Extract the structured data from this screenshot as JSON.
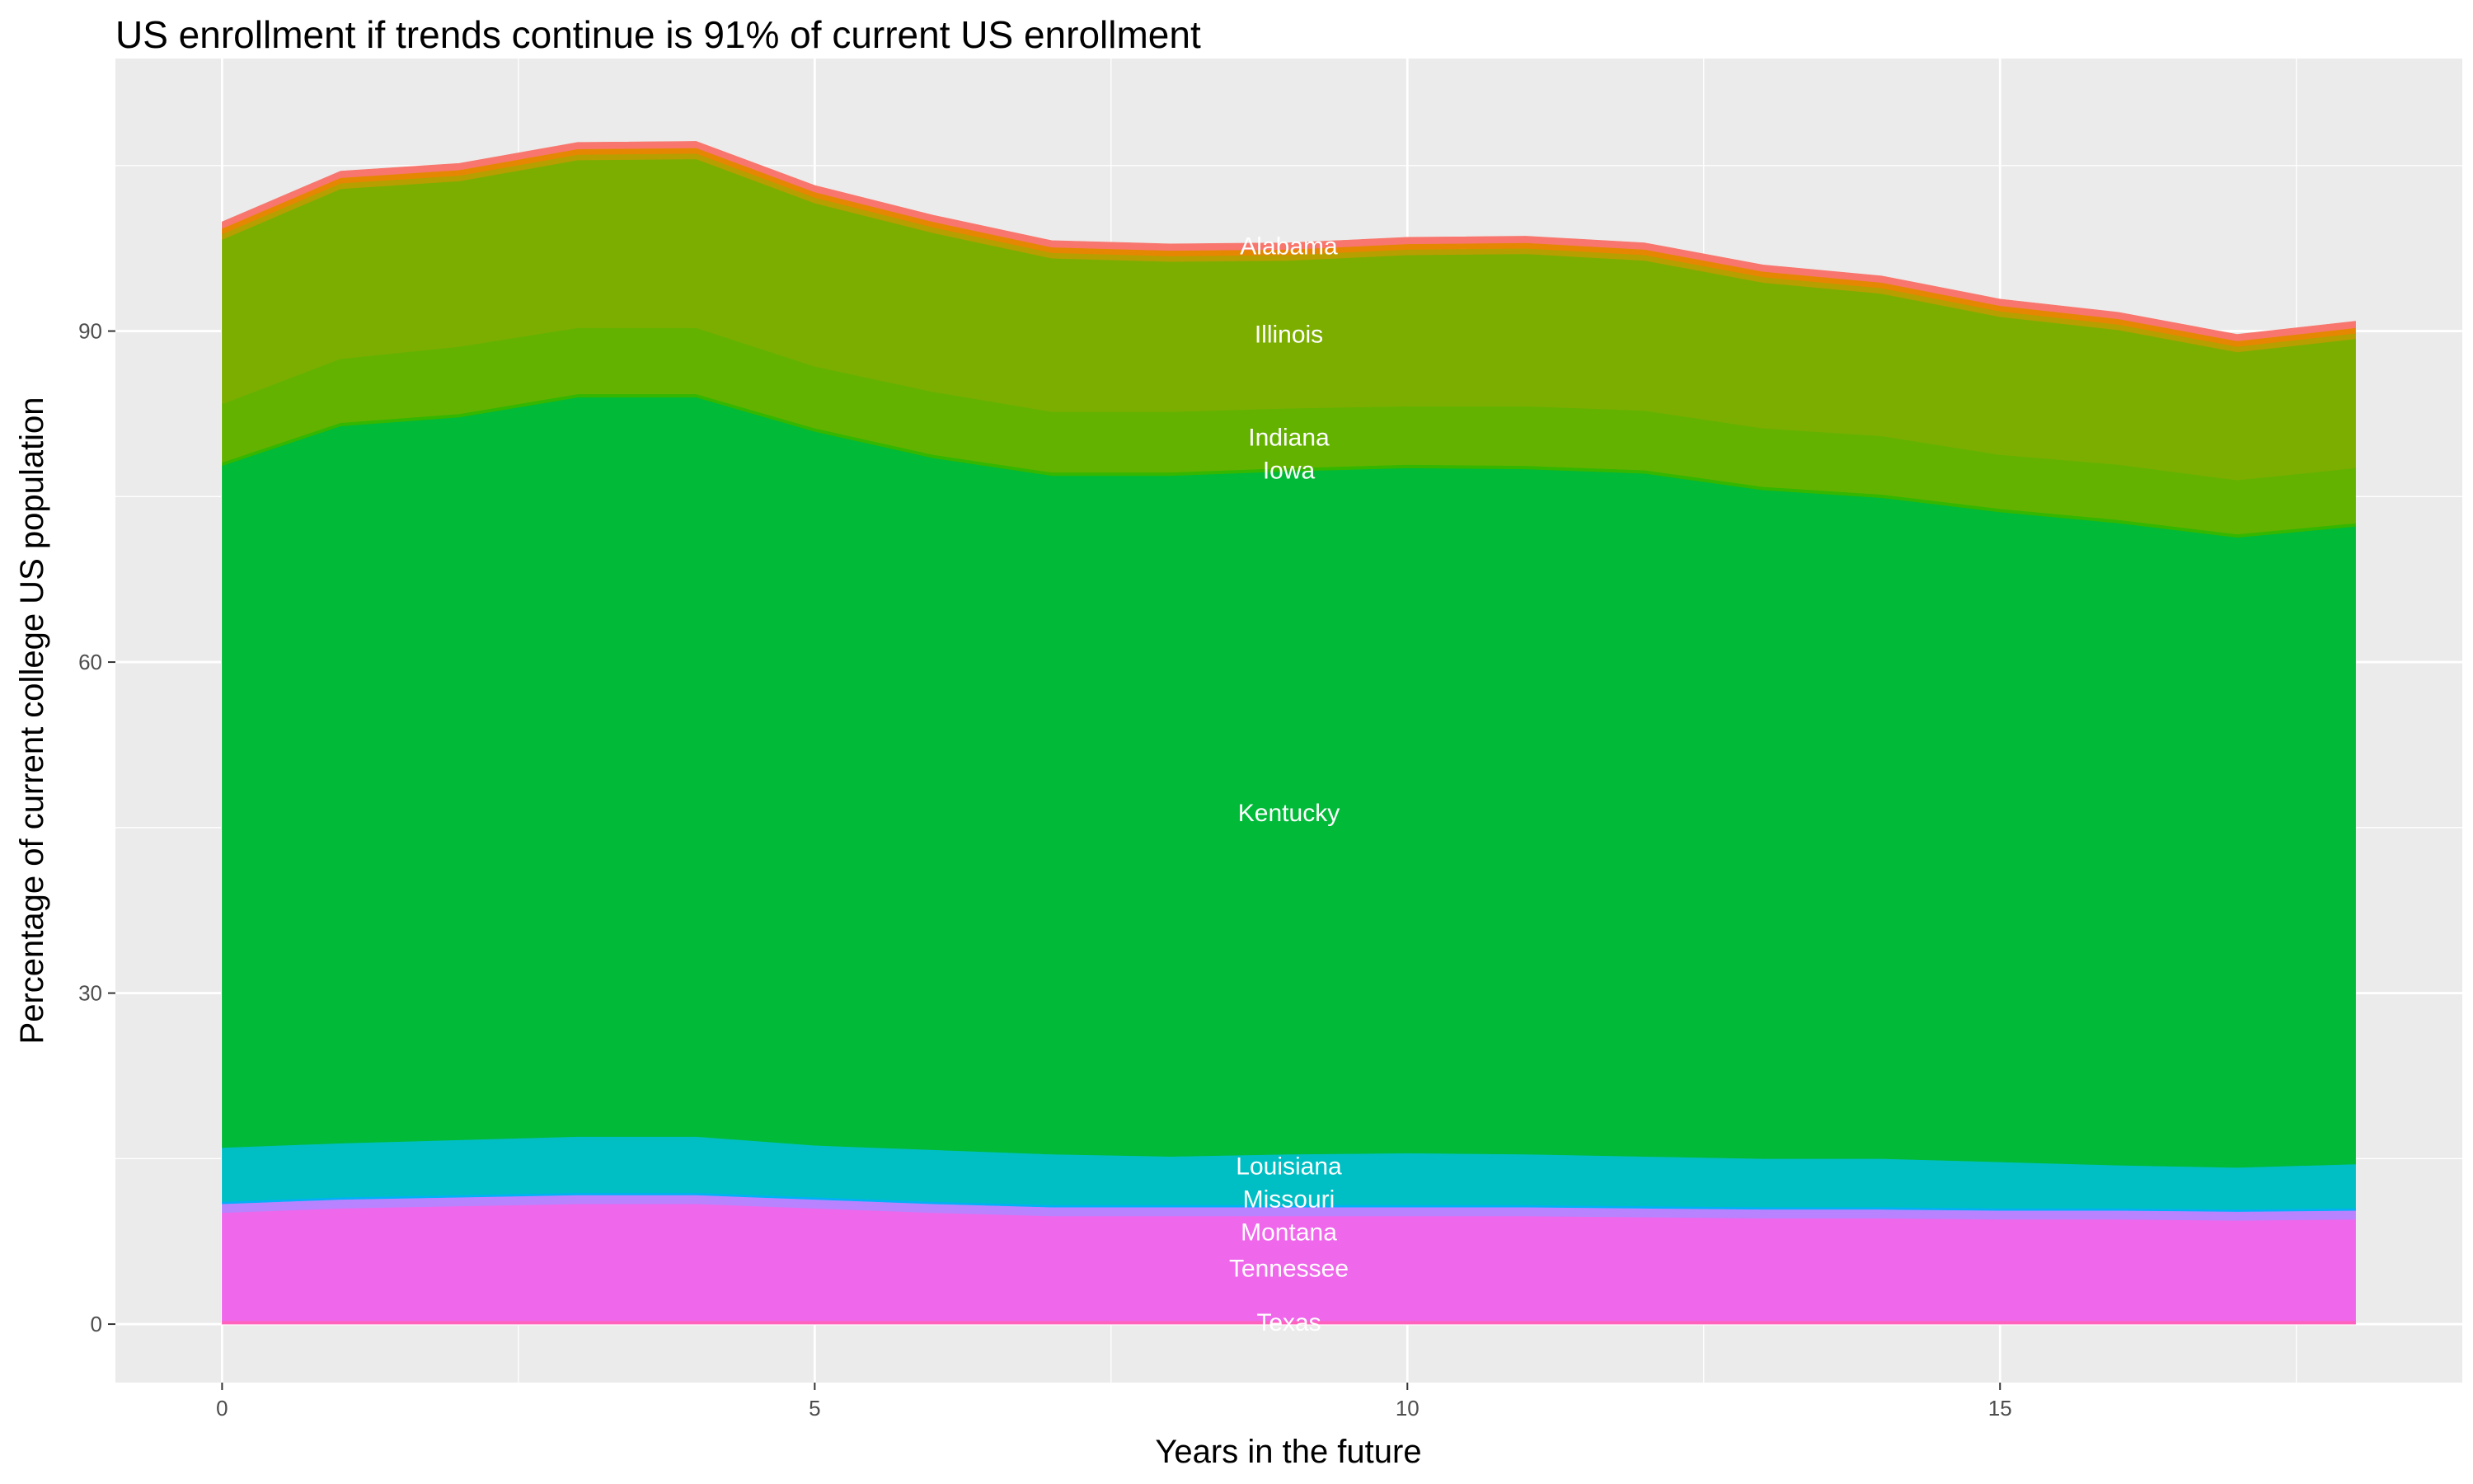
{
  "chart_data": {
    "type": "area",
    "stacked": true,
    "title": "US enrollment if trends continue is 91% of current US enrollment",
    "xlabel": "Years in the future",
    "ylabel": "Percentage of current college US population",
    "xlim": [
      -0.9,
      18.9
    ],
    "ylim": [
      -5.3,
      114.7
    ],
    "xticks": [
      0,
      5,
      10,
      15
    ],
    "yticks": [
      0,
      30,
      60,
      90
    ],
    "grid": true,
    "legend": "none",
    "label_x": 9,
    "x": [
      0,
      1,
      2,
      3,
      4,
      5,
      6,
      7,
      8,
      9,
      10,
      11,
      12,
      13,
      14,
      15,
      16,
      17,
      18
    ],
    "series": [
      {
        "name": "Texas",
        "color": "#FF62BC",
        "values": [
          0.3,
          0.3,
          0.3,
          0.3,
          0.3,
          0.3,
          0.3,
          0.3,
          0.3,
          0.3,
          0.3,
          0.3,
          0.3,
          0.3,
          0.3,
          0.3,
          0.3,
          0.3,
          0.3
        ]
      },
      {
        "name": "Tennessee",
        "color": "#EF67EB",
        "values": [
          9.8,
          10.2,
          10.4,
          10.6,
          10.6,
          10.2,
          9.8,
          9.5,
          9.5,
          9.5,
          9.5,
          9.5,
          9.4,
          9.3,
          9.3,
          9.2,
          9.2,
          9.1,
          9.2
        ]
      },
      {
        "name": "Montana",
        "color": "#B983FF",
        "values": [
          0.8,
          0.8,
          0.8,
          0.8,
          0.8,
          0.8,
          0.8,
          0.8,
          0.8,
          0.8,
          0.8,
          0.8,
          0.8,
          0.8,
          0.8,
          0.8,
          0.8,
          0.8,
          0.8
        ]
      },
      {
        "name": "Missouri",
        "color": "#00B0F6",
        "values": [
          0.2,
          0.2,
          0.2,
          0.2,
          0.2,
          0.2,
          0.2,
          0.2,
          0.2,
          0.2,
          0.2,
          0.2,
          0.2,
          0.2,
          0.2,
          0.2,
          0.2,
          0.2,
          0.2
        ]
      },
      {
        "name": "Louisiana",
        "color": "#00BFC4",
        "values": [
          4.9,
          4.9,
          5.0,
          5.1,
          5.1,
          4.7,
          4.7,
          4.6,
          4.4,
          4.6,
          4.7,
          4.6,
          4.5,
          4.4,
          4.4,
          4.2,
          3.9,
          3.8,
          4.0
        ]
      },
      {
        "name": "Kentucky",
        "color": "#00BA38",
        "values": [
          61.8,
          65.0,
          65.5,
          67.0,
          67.0,
          64.7,
          62.7,
          61.5,
          61.7,
          61.9,
          62.1,
          62.1,
          61.9,
          60.6,
          59.9,
          58.9,
          58.2,
          57.1,
          57.8
        ]
      },
      {
        "name": "Iowa",
        "color": "#35B700",
        "values": [
          0.3,
          0.3,
          0.3,
          0.3,
          0.3,
          0.3,
          0.3,
          0.3,
          0.3,
          0.3,
          0.3,
          0.3,
          0.3,
          0.3,
          0.3,
          0.3,
          0.3,
          0.3,
          0.3
        ]
      },
      {
        "name": "Indiana",
        "color": "#64B200",
        "values": [
          5.3,
          5.8,
          6.1,
          6.0,
          6.0,
          5.6,
          5.7,
          5.5,
          5.5,
          5.4,
          5.3,
          5.4,
          5.4,
          5.3,
          5.3,
          4.9,
          5.0,
          4.9,
          5.0
        ]
      },
      {
        "name": "Illinois",
        "color": "#7CAE00",
        "values": [
          14.9,
          15.4,
          15.0,
          15.2,
          15.3,
          14.8,
          14.4,
          13.9,
          13.6,
          13.4,
          13.7,
          13.8,
          13.6,
          13.2,
          12.9,
          12.5,
          12.2,
          11.6,
          11.7
        ]
      },
      {
        "name": "",
        "color": "#B79F00",
        "values": [
          0.5,
          0.5,
          0.5,
          0.5,
          0.5,
          0.5,
          0.5,
          0.5,
          0.5,
          0.5,
          0.5,
          0.5,
          0.5,
          0.5,
          0.5,
          0.5,
          0.5,
          0.5,
          0.5
        ]
      },
      {
        "name": "",
        "color": "#E58700",
        "values": [
          0.5,
          0.5,
          0.5,
          0.5,
          0.5,
          0.5,
          0.5,
          0.5,
          0.5,
          0.5,
          0.5,
          0.5,
          0.5,
          0.5,
          0.5,
          0.5,
          0.5,
          0.5,
          0.5
        ]
      },
      {
        "name": "Alabama",
        "color": "#F8766D",
        "values": [
          0.6,
          0.6,
          0.6,
          0.6,
          0.6,
          0.6,
          0.6,
          0.6,
          0.6,
          0.6,
          0.6,
          0.6,
          0.6,
          0.6,
          0.6,
          0.6,
          0.6,
          0.6,
          0.6
        ]
      }
    ]
  }
}
